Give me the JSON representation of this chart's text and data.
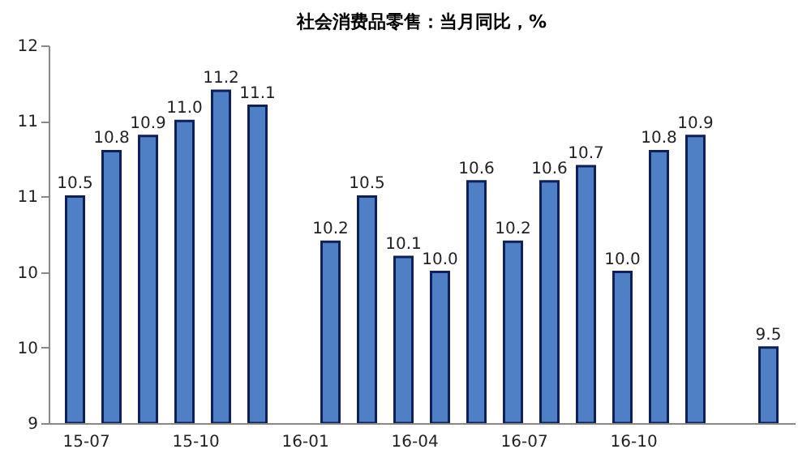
{
  "chart_data": {
    "type": "bar",
    "title": "社会消费品零售：当月同比，%",
    "categories": [
      "15-07",
      null,
      null,
      "15-10",
      null,
      null,
      "16-01",
      null,
      null,
      "16-04",
      null,
      null,
      "16-07",
      null,
      null,
      "16-10",
      null,
      null,
      null,
      null
    ],
    "values": [
      10.5,
      10.8,
      10.9,
      11.0,
      11.2,
      11.1,
      null,
      10.2,
      10.5,
      10.1,
      10.0,
      10.6,
      10.2,
      10.6,
      10.7,
      10.0,
      10.8,
      10.9,
      null,
      9.5
    ],
    "color": "#4f7fc4",
    "value_labels": [
      "10.5",
      "10.8",
      "10.9",
      "11.0",
      "11.2",
      "11.1",
      null,
      "10.2",
      "10.5",
      "10.1",
      "10.0",
      "10.6",
      "10.2",
      "10.6",
      "10.7",
      "10.0",
      "10.8",
      "10.9",
      null,
      "9.5"
    ],
    "ylim": [
      9,
      11.5
    ],
    "yticks": [
      9,
      {
        "value": 9.5,
        "label": "10"
      },
      10,
      {
        "value": 10.5,
        "label": "11"
      },
      11,
      {
        "value": 11.5,
        "label": "12"
      }
    ],
    "grid": false
  }
}
